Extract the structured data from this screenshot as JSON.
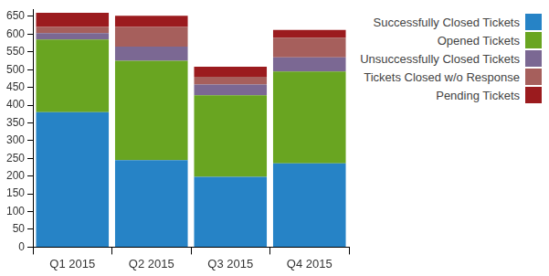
{
  "chart_data": {
    "type": "bar",
    "categories": [
      "Q1 2015",
      "Q2 2015",
      "Q3 2015",
      "Q4 2015"
    ],
    "series": [
      {
        "name": "Successfully Closed Tickets",
        "color": "#2683c6",
        "values": [
          380,
          245,
          198,
          236
        ]
      },
      {
        "name": "Opened Tickets",
        "color": "#69a521",
        "values": [
          205,
          280,
          230,
          259
        ]
      },
      {
        "name": "Unsuccessfully Closed Tickets",
        "color": "#7b6893",
        "values": [
          18,
          40,
          30,
          40
        ]
      },
      {
        "name": "Tickets Closed w/o Response",
        "color": "#a65f5c",
        "values": [
          17,
          55,
          22,
          55
        ]
      },
      {
        "name": "Pending Tickets",
        "color": "#9b1b1e",
        "values": [
          40,
          32,
          28,
          22
        ]
      }
    ],
    "stacked": true,
    "ylim": [
      0,
      670
    ],
    "yticks": [
      0,
      50,
      100,
      150,
      200,
      250,
      300,
      350,
      400,
      450,
      500,
      550,
      600,
      650
    ],
    "grid": false,
    "legend": "right"
  }
}
